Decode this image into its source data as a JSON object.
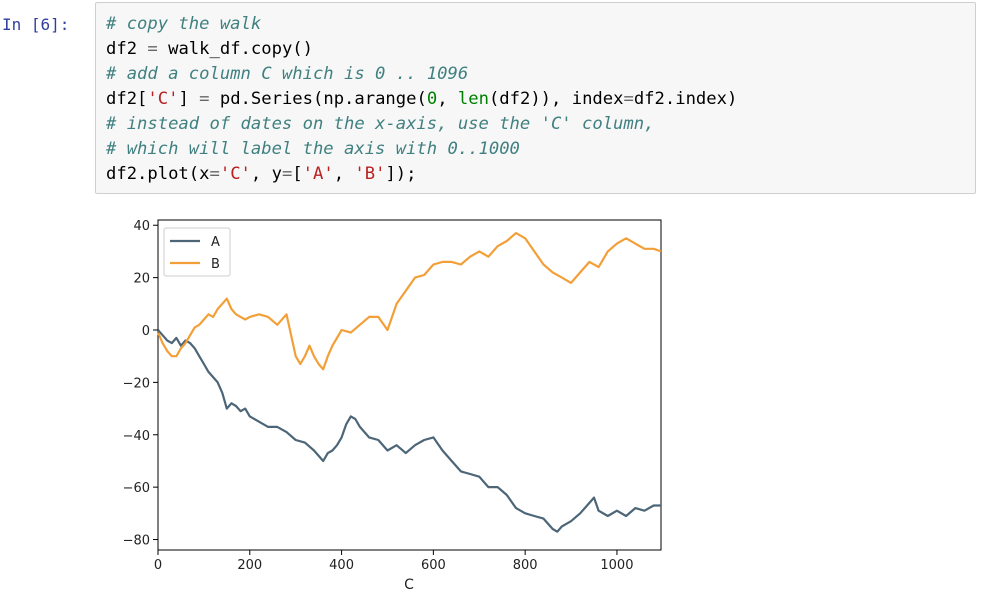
{
  "cell": {
    "prompt": "In [6]:",
    "code_lines": [
      [
        {
          "t": "# copy the walk",
          "c": "cm"
        }
      ],
      [
        {
          "t": "df2 ",
          "c": ""
        },
        {
          "t": "=",
          "c": "op"
        },
        {
          "t": " walk_df.copy()",
          "c": ""
        }
      ],
      [
        {
          "t": "# add a column C which is 0 .. 1096",
          "c": "cm"
        }
      ],
      [
        {
          "t": "df2[",
          "c": ""
        },
        {
          "t": "'C'",
          "c": "str"
        },
        {
          "t": "] ",
          "c": ""
        },
        {
          "t": "=",
          "c": "op"
        },
        {
          "t": " pd.Series(np.arange(",
          "c": ""
        },
        {
          "t": "0",
          "c": "num"
        },
        {
          "t": ", ",
          "c": ""
        },
        {
          "t": "len",
          "c": "builtin"
        },
        {
          "t": "(df2)), index",
          "c": ""
        },
        {
          "t": "=",
          "c": "op"
        },
        {
          "t": "df2.index)",
          "c": ""
        }
      ],
      [
        {
          "t": "# instead of dates on the x-axis, use the 'C' column,",
          "c": "cm"
        }
      ],
      [
        {
          "t": "# which will label the axis with 0..1000",
          "c": "cm"
        }
      ],
      [
        {
          "t": "df2.plot(x",
          "c": ""
        },
        {
          "t": "=",
          "c": "op"
        },
        {
          "t": "'C'",
          "c": "str"
        },
        {
          "t": ", y",
          "c": ""
        },
        {
          "t": "=",
          "c": "op"
        },
        {
          "t": "[",
          "c": ""
        },
        {
          "t": "'A'",
          "c": "str"
        },
        {
          "t": ", ",
          "c": ""
        },
        {
          "t": "'B'",
          "c": "str"
        },
        {
          "t": "]);",
          "c": ""
        }
      ]
    ]
  },
  "chart_data": {
    "type": "line",
    "xlabel": "C",
    "ylabel": "",
    "xlim": [
      0,
      1096
    ],
    "ylim": [
      -84,
      42
    ],
    "xticks": [
      0,
      200,
      400,
      600,
      800,
      1000
    ],
    "yticks": [
      40,
      20,
      0,
      -20,
      -40,
      -60,
      -80
    ],
    "ytick_labels": [
      "40",
      "20",
      "0",
      "−20",
      "−40",
      "−60",
      "−80"
    ],
    "grid": false,
    "legend_position": "top-left",
    "series": [
      {
        "name": "A",
        "color": "#4c6678",
        "x": [
          0,
          10,
          20,
          30,
          40,
          50,
          60,
          70,
          80,
          90,
          100,
          110,
          120,
          130,
          140,
          150,
          160,
          170,
          180,
          190,
          200,
          220,
          240,
          260,
          280,
          300,
          320,
          340,
          360,
          370,
          380,
          390,
          400,
          410,
          420,
          430,
          440,
          460,
          480,
          500,
          520,
          540,
          560,
          580,
          600,
          620,
          640,
          660,
          680,
          700,
          720,
          740,
          760,
          780,
          800,
          820,
          840,
          860,
          870,
          880,
          900,
          920,
          940,
          950,
          960,
          980,
          1000,
          1020,
          1040,
          1060,
          1080,
          1096
        ],
        "y": [
          0,
          -2,
          -4,
          -5,
          -3,
          -6,
          -4,
          -5,
          -7,
          -10,
          -13,
          -16,
          -18,
          -20,
          -24,
          -30,
          -28,
          -29,
          -31,
          -30,
          -33,
          -35,
          -37,
          -37,
          -39,
          -42,
          -43,
          -46,
          -50,
          -47,
          -46,
          -44,
          -41,
          -36,
          -33,
          -34,
          -37,
          -41,
          -42,
          -46,
          -44,
          -47,
          -44,
          -42,
          -41,
          -46,
          -50,
          -54,
          -55,
          -56,
          -60,
          -60,
          -63,
          -68,
          -70,
          -71,
          -72,
          -76,
          -77,
          -75,
          -73,
          -70,
          -66,
          -64,
          -69,
          -71,
          -69,
          -71,
          -68,
          -69,
          -67,
          -67
        ]
      },
      {
        "name": "B",
        "color": "#f39f37",
        "x": [
          0,
          10,
          20,
          30,
          40,
          50,
          60,
          70,
          80,
          90,
          100,
          110,
          120,
          130,
          140,
          150,
          160,
          170,
          180,
          190,
          200,
          220,
          240,
          260,
          280,
          290,
          300,
          310,
          320,
          330,
          340,
          350,
          360,
          370,
          380,
          390,
          400,
          420,
          440,
          460,
          480,
          500,
          520,
          540,
          560,
          580,
          600,
          620,
          640,
          660,
          680,
          700,
          720,
          740,
          760,
          780,
          800,
          820,
          840,
          860,
          880,
          900,
          920,
          940,
          960,
          980,
          1000,
          1020,
          1040,
          1060,
          1080,
          1096
        ],
        "y": [
          -1,
          -5,
          -8,
          -10,
          -10,
          -7,
          -5,
          -2,
          1,
          2,
          4,
          6,
          5,
          8,
          10,
          12,
          8,
          6,
          5,
          4,
          5,
          6,
          5,
          2,
          6,
          -2,
          -10,
          -13,
          -10,
          -6,
          -10,
          -13,
          -15,
          -10,
          -6,
          -3,
          0,
          -1,
          2,
          5,
          5,
          0,
          10,
          15,
          20,
          21,
          25,
          26,
          26,
          25,
          28,
          30,
          28,
          32,
          34,
          37,
          35,
          30,
          25,
          22,
          20,
          18,
          22,
          26,
          24,
          30,
          33,
          35,
          33,
          31,
          31,
          30
        ]
      }
    ]
  }
}
